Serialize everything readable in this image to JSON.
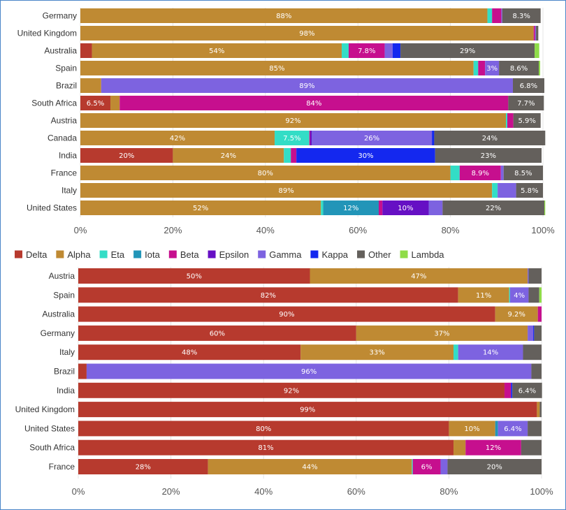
{
  "colors": {
    "Delta": "#b73a2e",
    "Alpha": "#bf8a33",
    "Eta": "#33ddc6",
    "Iota": "#2295b8",
    "Beta": "#c60f8e",
    "Epsilon": "#6610c4",
    "Gamma": "#7d63e0",
    "Kappa": "#1428ef",
    "Other": "#64605c",
    "Lambda": "#8fdc48"
  },
  "chart_data": [
    {
      "type": "bar",
      "orientation": "horizontal",
      "stacked": true,
      "normalized": true,
      "xlim": [
        0,
        100
      ],
      "x_ticks": [
        "0%",
        "20%",
        "40%",
        "60%",
        "80%",
        "100%"
      ],
      "grid": true,
      "categories": [
        "Germany",
        "United Kingdom",
        "Australia",
        "Spain",
        "Brazil",
        "South Africa",
        "Austria",
        "Canada",
        "India",
        "France",
        "Italy",
        "United States"
      ],
      "series": [
        {
          "name": "Delta",
          "values": [
            0,
            0,
            2.5,
            0,
            0,
            6.5,
            0,
            0,
            20,
            0,
            0,
            0
          ]
        },
        {
          "name": "Alpha",
          "values": [
            88,
            98,
            54,
            85,
            4.5,
            2,
            92,
            42,
            24,
            80,
            89,
            52
          ]
        },
        {
          "name": "Eta",
          "values": [
            1,
            0,
            1.5,
            1,
            0,
            0,
            0.3,
            7.5,
            1.5,
            2,
            1.2,
            0.5
          ]
        },
        {
          "name": "Iota",
          "values": [
            0,
            0,
            0,
            0,
            0,
            0,
            0,
            0,
            0,
            0,
            0,
            12
          ]
        },
        {
          "name": "Beta",
          "values": [
            2,
            0.3,
            7.8,
            1.5,
            0,
            84,
            1.3,
            0.2,
            1.2,
            8.9,
            0,
            0.8
          ]
        },
        {
          "name": "Epsilon",
          "values": [
            0,
            0,
            0,
            0,
            0,
            0,
            0,
            0.3,
            0,
            0,
            0,
            10
          ]
        },
        {
          "name": "Gamma",
          "values": [
            0.2,
            0.2,
            1.7,
            3,
            89,
            0,
            0,
            26,
            0,
            0.6,
            4,
            3
          ]
        },
        {
          "name": "Kappa",
          "values": [
            0,
            0,
            1.7,
            0,
            0,
            0,
            0,
            0.5,
            30,
            0,
            0,
            0
          ]
        },
        {
          "name": "Other",
          "values": [
            8.3,
            0.5,
            29,
            8.6,
            6.8,
            7.7,
            5.9,
            24,
            23,
            8.5,
            5.8,
            22
          ]
        },
        {
          "name": "Lambda",
          "values": [
            0,
            0,
            1,
            0.3,
            0,
            0,
            0,
            0,
            0,
            0,
            0,
            0.2
          ]
        }
      ],
      "labels": {
        "Germany": {
          "Alpha": "88%",
          "Other": "8.3%"
        },
        "United Kingdom": {
          "Alpha": "98%"
        },
        "Australia": {
          "Alpha": "54%",
          "Beta": "7.8%",
          "Other": "29%"
        },
        "Spain": {
          "Alpha": "85%",
          "Gamma": "3%",
          "Other": "8.6%"
        },
        "Brazil": {
          "Gamma": "89%",
          "Other": "6.8%"
        },
        "South Africa": {
          "Delta": "6.5%",
          "Beta": "84%",
          "Other": "7.7%"
        },
        "Austria": {
          "Alpha": "92%",
          "Other": "5.9%"
        },
        "Canada": {
          "Alpha": "42%",
          "Eta": "7.5%",
          "Gamma": "26%",
          "Other": "24%"
        },
        "India": {
          "Delta": "20%",
          "Alpha": "24%",
          "Kappa": "30%",
          "Other": "23%"
        },
        "France": {
          "Alpha": "80%",
          "Beta": "8.9%",
          "Other": "8.5%"
        },
        "Italy": {
          "Alpha": "89%",
          "Other": "5.8%"
        },
        "United States": {
          "Alpha": "52%",
          "Iota": "12%",
          "Epsilon": "10%",
          "Other": "22%"
        }
      }
    },
    {
      "type": "bar",
      "orientation": "horizontal",
      "stacked": true,
      "normalized": true,
      "xlim": [
        0,
        100
      ],
      "x_ticks": [
        "0%",
        "20%",
        "40%",
        "60%",
        "80%",
        "100%"
      ],
      "grid": true,
      "categories": [
        "Austria",
        "Spain",
        "Australia",
        "Germany",
        "Italy",
        "Brazil",
        "India",
        "United Kingdom",
        "United States",
        "South Africa",
        "France"
      ],
      "series": [
        {
          "name": "Delta",
          "values": [
            50,
            82,
            90,
            60,
            48,
            1.8,
            92,
            99,
            80,
            81,
            28
          ]
        },
        {
          "name": "Alpha",
          "values": [
            47,
            11,
            9.2,
            37,
            33,
            0,
            0,
            0.6,
            10,
            2.6,
            44
          ]
        },
        {
          "name": "Eta",
          "values": [
            0,
            0.2,
            0,
            0,
            1,
            0,
            0,
            0,
            0,
            0,
            0.2
          ]
        },
        {
          "name": "Iota",
          "values": [
            0,
            0,
            0,
            0,
            0,
            0,
            0,
            0,
            0.6,
            0,
            0
          ]
        },
        {
          "name": "Beta",
          "values": [
            0,
            0,
            0.8,
            0,
            0,
            0,
            1.4,
            0,
            0,
            12,
            6
          ]
        },
        {
          "name": "Epsilon",
          "values": [
            0,
            0,
            0,
            0,
            0,
            0,
            0,
            0,
            0,
            0,
            0
          ]
        },
        {
          "name": "Gamma",
          "values": [
            0.2,
            4,
            0,
            1.2,
            14,
            96,
            0,
            0,
            6.4,
            0,
            1.5
          ]
        },
        {
          "name": "Kappa",
          "values": [
            0,
            0,
            0,
            0.2,
            0,
            0,
            0.3,
            0,
            0,
            0,
            0
          ]
        },
        {
          "name": "Other",
          "values": [
            2.8,
            2.3,
            0,
            1.6,
            4,
            2.2,
            6.4,
            0.4,
            3,
            4.4,
            20.3
          ]
        },
        {
          "name": "Lambda",
          "values": [
            0,
            0.5,
            0,
            0,
            0,
            0,
            0,
            0,
            0,
            0,
            0
          ]
        }
      ],
      "labels": {
        "Austria": {
          "Delta": "50%",
          "Alpha": "47%"
        },
        "Spain": {
          "Delta": "82%",
          "Alpha": "11%",
          "Gamma": "4%"
        },
        "Australia": {
          "Delta": "90%",
          "Alpha": "9.2%"
        },
        "Germany": {
          "Delta": "60%",
          "Alpha": "37%"
        },
        "Italy": {
          "Delta": "48%",
          "Alpha": "33%",
          "Gamma": "14%"
        },
        "Brazil": {
          "Gamma": "96%"
        },
        "India": {
          "Delta": "92%",
          "Other": "6.4%"
        },
        "United Kingdom": {
          "Delta": "99%"
        },
        "United States": {
          "Delta": "80%",
          "Alpha": "10%",
          "Gamma": "6.4%"
        },
        "South Africa": {
          "Delta": "81%",
          "Beta": "12%"
        },
        "France": {
          "Delta": "28%",
          "Alpha": "44%",
          "Beta": "6%",
          "Other": "20%"
        }
      }
    }
  ],
  "legend": {
    "position": "between-charts",
    "items": [
      "Delta",
      "Alpha",
      "Eta",
      "Iota",
      "Beta",
      "Epsilon",
      "Gamma",
      "Kappa",
      "Other",
      "Lambda"
    ]
  }
}
